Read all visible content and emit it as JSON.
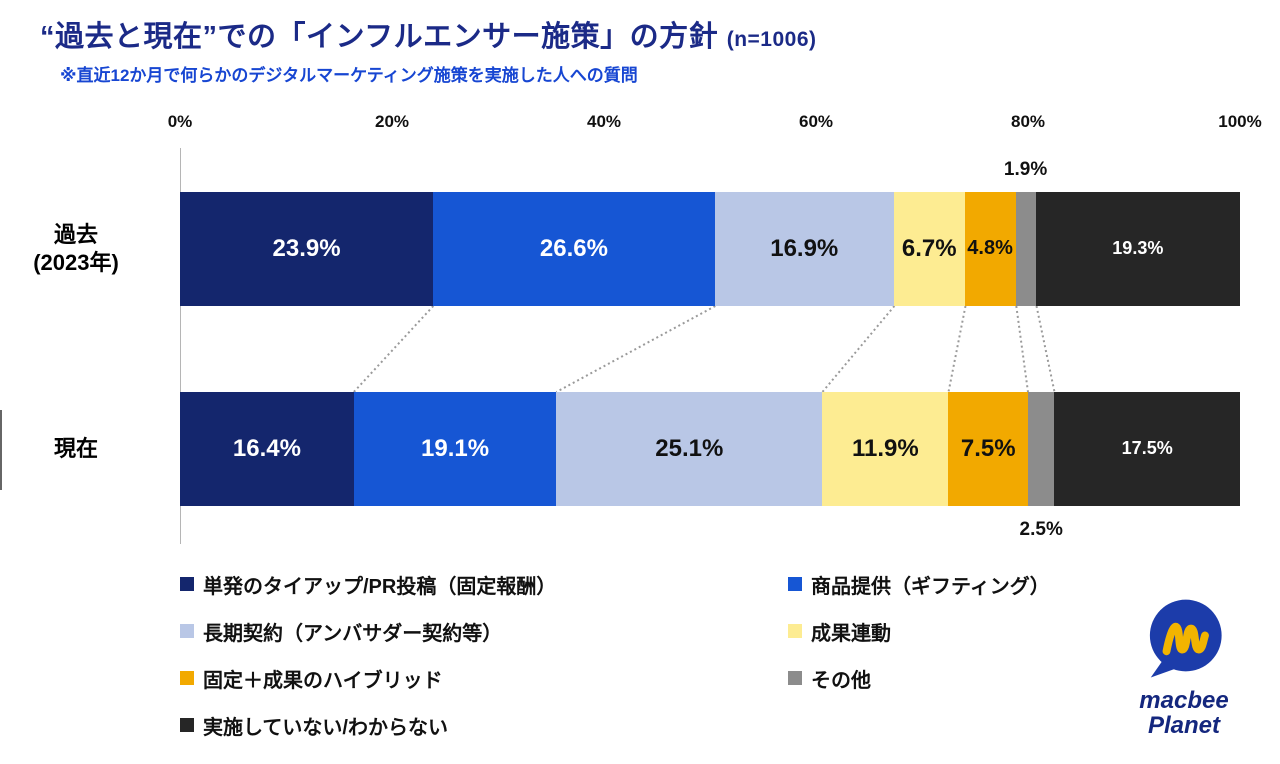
{
  "header": {
    "title": "“過去と現在”での「インフルエンサー施策」の方針",
    "sample_size": "(n=1006)",
    "subtitle": "※直近12か月で何らかのデジタルマーケティング施策を実施した人への質問"
  },
  "chart_data": {
    "type": "bar",
    "variant": "horizontal-stacked",
    "title": "“過去と現在”での「インフルエンサー施策」の方針 (n=1006)",
    "xlim": [
      0,
      100
    ],
    "x_ticks": [
      "0%",
      "20%",
      "40%",
      "60%",
      "80%",
      "100%"
    ],
    "grid": false,
    "legend_position": "bottom",
    "categories": [
      {
        "label": "単発のタイアップ/PR投稿（固定報酬）",
        "color": "#14266d",
        "text_color": "#ffffff"
      },
      {
        "label": "商品提供（ギフティング）",
        "color": "#1656d4",
        "text_color": "#ffffff"
      },
      {
        "label": "長期契約（アンバサダー契約等）",
        "color": "#b9c7e6",
        "text_color": "#111111"
      },
      {
        "label": "成果連動",
        "color": "#fdec92",
        "text_color": "#111111"
      },
      {
        "label": "固定＋成果のハイブリッド",
        "color": "#f2a900",
        "text_color": "#111111"
      },
      {
        "label": "その他",
        "color": "#8c8c8c",
        "text_color": "#111111"
      },
      {
        "label": "実施していない/わからない",
        "color": "#262626",
        "text_color": "#ffffff"
      }
    ],
    "rows": [
      {
        "label": "過去\n(2023年)",
        "values": [
          23.9,
          26.6,
          16.9,
          6.7,
          4.8,
          1.9,
          19.3
        ]
      },
      {
        "label": "現在",
        "values": [
          16.4,
          19.1,
          25.1,
          11.9,
          7.5,
          2.5,
          17.5
        ]
      }
    ]
  },
  "logo": {
    "line1": "macbee",
    "line2": "Planet",
    "bubble_color": "#1c3caa",
    "mark_color": "#f2b400",
    "text_color": "#14277e"
  }
}
